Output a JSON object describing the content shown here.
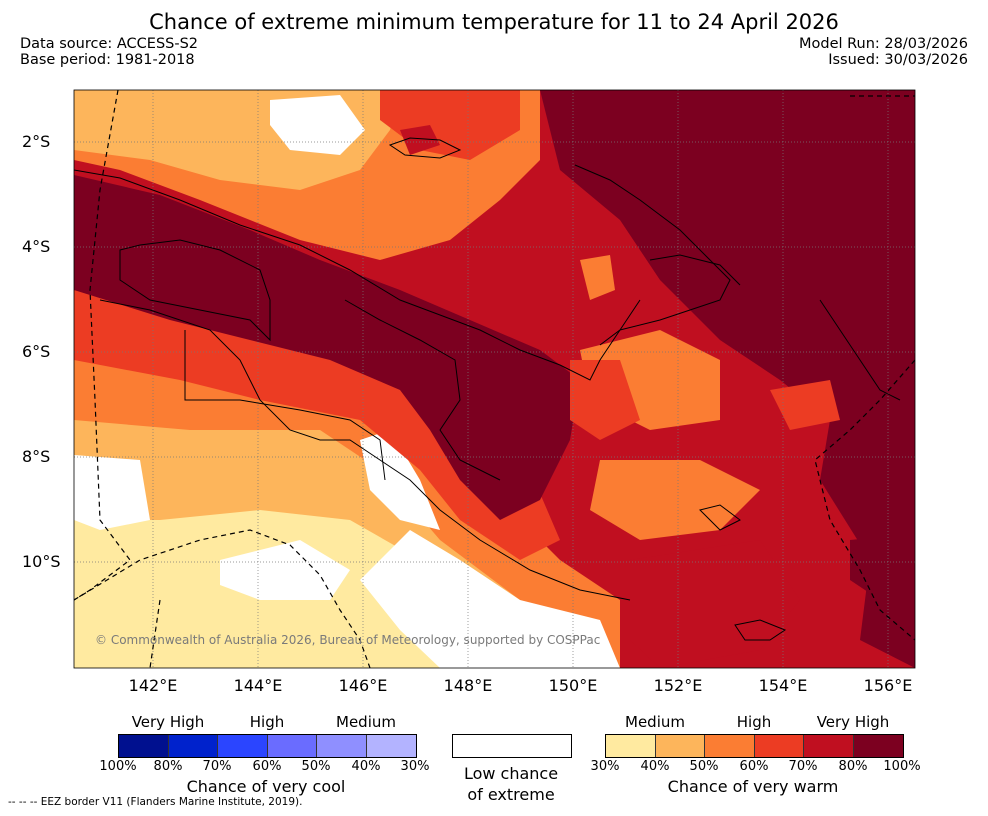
{
  "title": "Chance of extreme minimum temperature for 11 to 24 April 2026",
  "data_source": "Data source: ACCESS-S2",
  "base_period": "Base period: 1981-2018",
  "model_run": "Model Run: 28/03/2026",
  "issued": "Issued: 30/03/2026",
  "latitude_labels": [
    "2°S",
    "4°S",
    "6°S",
    "8°S",
    "10°S"
  ],
  "longitude_labels": [
    "142°E",
    "144°E",
    "146°E",
    "148°E",
    "150°E",
    "152°E",
    "154°E",
    "156°E"
  ],
  "copyright": "© Commonwealth of Australia 2026, Bureau of Meteorology, supported by COSPPac",
  "cool_legend": {
    "labels": [
      "Very High",
      "High",
      "Medium"
    ],
    "ticks": [
      "100%",
      "80%",
      "70%",
      "60%",
      "50%",
      "40%",
      "30%"
    ],
    "colors": [
      "#00108f",
      "#0022cc",
      "#2b45ff",
      "#6a6cff",
      "#8f8fff",
      "#b3b3ff"
    ],
    "caption": "Chance of very cool"
  },
  "low_legend": {
    "caption_line1": "Low chance",
    "caption_line2": "of extreme"
  },
  "warm_legend": {
    "labels": [
      "Medium",
      "High",
      "Very High"
    ],
    "ticks": [
      "30%",
      "40%",
      "50%",
      "60%",
      "70%",
      "80%",
      "100%"
    ],
    "colors": [
      "#ffeaa0",
      "#fdb55b",
      "#fb7d33",
      "#ec3c23",
      "#c00f20",
      "#7c0020"
    ],
    "caption": "Chance of very warm"
  },
  "footnote": "--  --  -- EEZ border V11 (Flanders Marine Institute, 2019)."
}
